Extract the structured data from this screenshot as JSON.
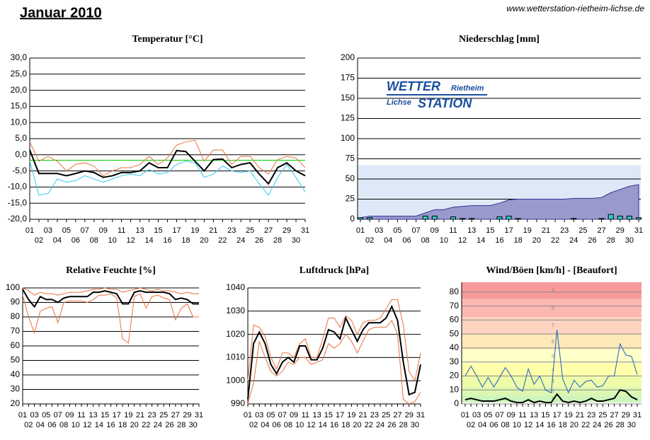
{
  "header": {
    "title": "Januar 2010",
    "url": "www.wetterstation-rietheim-lichse.de"
  },
  "logo": {
    "word1": "WETTER",
    "place1": "Rietheim",
    "place2": "Lichse",
    "word2": "STATION"
  },
  "chart_data": [
    {
      "type": "line",
      "title": "Temperatur [°C]",
      "categories": [
        "01",
        "02",
        "03",
        "04",
        "05",
        "06",
        "07",
        "08",
        "09",
        "10",
        "11",
        "12",
        "13",
        "14",
        "15",
        "16",
        "17",
        "18",
        "19",
        "20",
        "21",
        "22",
        "23",
        "24",
        "25",
        "26",
        "27",
        "28",
        "29",
        "30",
        "31"
      ],
      "ylim": [
        -20,
        30
      ],
      "yticks": [
        {
          "value": -20,
          "label": "-20,0"
        },
        {
          "value": -15,
          "label": "-15,0"
        },
        {
          "value": -10,
          "label": "-10,0"
        },
        {
          "value": -5,
          "label": "-5,0"
        },
        {
          "value": 0,
          "label": "0,0"
        },
        {
          "value": 5,
          "label": "5,0"
        },
        {
          "value": 10,
          "label": "10,0"
        },
        {
          "value": 15,
          "label": "15,0"
        },
        {
          "value": 20,
          "label": "20,0"
        },
        {
          "value": 25,
          "label": "25,0"
        },
        {
          "value": 30,
          "label": "30,0"
        }
      ],
      "series": [
        {
          "color": "#00cc00",
          "values": [
            -1.7,
            -1.7,
            -1.7,
            -1.7,
            -1.7,
            -1.7,
            -1.7,
            -1.7,
            -1.7,
            -1.7,
            -1.7,
            -1.7,
            -1.7,
            -1.7,
            -1.7,
            -1.7,
            -1.7,
            -1.7,
            -1.7,
            -1.7,
            -1.7,
            -1.7,
            -1.7,
            -1.7,
            -1.7,
            -1.7,
            -1.7,
            -1.7,
            -1.7,
            -1.7,
            -1.7
          ]
        },
        {
          "color": "#e8703a",
          "values": [
            4,
            -2,
            -0.5,
            -2,
            -5,
            -3,
            -2.5,
            -3.5,
            -6.5,
            -5,
            -4,
            -4,
            -3,
            -0.5,
            -3,
            -1,
            3,
            4,
            4.5,
            -2,
            1.5,
            1.5,
            -3,
            -0.5,
            -0.5,
            -4,
            -6,
            -1.5,
            -0.5,
            -1,
            -4
          ]
        },
        {
          "color": "#33ccee",
          "values": [
            -2,
            -12.5,
            -12,
            -7.5,
            -8.5,
            -8,
            -6.5,
            -7.5,
            -8.5,
            -7.5,
            -6.5,
            -6,
            -6.5,
            -4.5,
            -6,
            -5.5,
            -3,
            -2,
            -2.5,
            -7,
            -6,
            -3.5,
            -5,
            -5.5,
            -5,
            -9,
            -12.5,
            -7,
            -3,
            -7,
            -11.5
          ]
        },
        {
          "color": "#000000",
          "width": 2,
          "values": [
            1.5,
            -5.8,
            -5.8,
            -5.8,
            -6.5,
            -5.8,
            -5,
            -5.5,
            -7,
            -6.5,
            -5.5,
            -5.5,
            -5,
            -2.5,
            -4,
            -4,
            1.3,
            1,
            -2,
            -5,
            -1.5,
            -1.3,
            -4,
            -3,
            -2.5,
            -6,
            -9,
            -4,
            -2.5,
            -5,
            -6.5
          ]
        }
      ]
    },
    {
      "type": "bar",
      "title": "Niederschlag [mm]",
      "categories": [
        "01",
        "02",
        "03",
        "04",
        "05",
        "06",
        "07",
        "08",
        "09",
        "10",
        "11",
        "12",
        "13",
        "14",
        "15",
        "16",
        "17",
        "18",
        "19",
        "20",
        "21",
        "22",
        "23",
        "24",
        "25",
        "26",
        "27",
        "28",
        "29",
        "30",
        "31"
      ],
      "ylim": [
        0,
        200
      ],
      "yticks": [
        0,
        25,
        50,
        75,
        100,
        125,
        150,
        175,
        200
      ],
      "normal_band": 67,
      "series": [
        {
          "type": "area",
          "color": "#9999cc",
          "values": [
            2,
            4,
            4,
            4,
            4,
            4,
            4,
            8,
            12,
            12,
            15,
            16,
            17,
            17,
            17,
            20,
            24,
            25,
            25,
            25,
            25,
            25,
            25,
            26,
            26,
            26,
            27,
            33,
            37,
            41,
            43
          ]
        },
        {
          "type": "bar",
          "color": "#33cccc",
          "values": [
            2,
            2,
            0,
            0,
            0,
            0,
            0,
            4,
            4,
            0,
            3,
            1,
            1,
            0,
            0,
            3,
            4,
            1,
            0,
            0,
            0,
            0,
            0,
            1,
            0,
            0,
            1,
            6,
            4,
            4,
            2
          ]
        }
      ]
    },
    {
      "type": "line",
      "title": "Relative Feuchte [%]",
      "categories": [
        "01",
        "02",
        "03",
        "04",
        "05",
        "06",
        "07",
        "08",
        "09",
        "10",
        "11",
        "12",
        "13",
        "14",
        "15",
        "16",
        "17",
        "18",
        "19",
        "20",
        "21",
        "22",
        "23",
        "24",
        "25",
        "26",
        "27",
        "28",
        "29",
        "30",
        "31"
      ],
      "ylim": [
        20,
        100
      ],
      "yticks": [
        20,
        30,
        40,
        50,
        60,
        70,
        80,
        90,
        100
      ],
      "series": [
        {
          "color": "#e8703a",
          "values": [
            100,
            98,
            95,
            97,
            96,
            96,
            95,
            96,
            97,
            97,
            97,
            98,
            99,
            99,
            100,
            99,
            99,
            97,
            98,
            99,
            100,
            99,
            98,
            99,
            98,
            98,
            97,
            96,
            97,
            96,
            96
          ]
        },
        {
          "color": "#e8703a",
          "values": [
            95,
            80,
            69,
            84,
            86,
            87,
            76,
            90,
            91,
            91,
            91,
            90,
            92,
            95,
            95,
            96,
            93,
            65,
            62,
            94,
            96,
            86,
            94,
            95,
            93,
            92,
            78,
            86,
            89,
            80,
            80
          ]
        },
        {
          "color": "#000000",
          "width": 2,
          "values": [
            99,
            92,
            87,
            94,
            92,
            92,
            90,
            93,
            94,
            94,
            94,
            94,
            97,
            97,
            98,
            97,
            96,
            89,
            89,
            97,
            98,
            97,
            97,
            97,
            97,
            96,
            92,
            93,
            92,
            89,
            89
          ]
        }
      ]
    },
    {
      "type": "line",
      "title": "Luftdruck [hPa]",
      "categories": [
        "01",
        "02",
        "03",
        "04",
        "05",
        "06",
        "07",
        "08",
        "09",
        "10",
        "11",
        "12",
        "13",
        "14",
        "15",
        "16",
        "17",
        "18",
        "19",
        "20",
        "21",
        "22",
        "23",
        "24",
        "25",
        "26",
        "27",
        "28",
        "29",
        "30",
        "31"
      ],
      "ylim": [
        990,
        1040
      ],
      "yticks": [
        990,
        1000,
        1010,
        1020,
        1030,
        1040
      ],
      "series": [
        {
          "color": "#e8703a",
          "values": [
            1000,
            1024,
            1023,
            1019,
            1010,
            1005,
            1012,
            1012,
            1010,
            1016,
            1018,
            1010,
            1010,
            1018,
            1027,
            1027,
            1023,
            1028,
            1026,
            1020,
            1025,
            1026,
            1026,
            1027,
            1031,
            1035,
            1035,
            1024,
            1004,
            1000,
            1012
          ]
        },
        {
          "color": "#e8703a",
          "values": [
            990,
            999,
            1017,
            1010,
            1004,
            1002,
            1004,
            1008,
            1007,
            1010,
            1010,
            1007,
            1008,
            1009,
            1016,
            1014,
            1016,
            1020,
            1017,
            1012,
            1017,
            1022,
            1023,
            1023,
            1023,
            1026,
            1020,
            992,
            990,
            991,
            995
          ]
        },
        {
          "color": "#000000",
          "width": 2,
          "values": [
            992,
            1016,
            1021,
            1016,
            1007,
            1003,
            1008,
            1010,
            1008,
            1015,
            1015,
            1009,
            1009,
            1014,
            1022,
            1021,
            1018,
            1027,
            1022,
            1017,
            1022,
            1025,
            1025,
            1025,
            1027,
            1032,
            1026,
            1008,
            994,
            995,
            1007
          ]
        }
      ]
    },
    {
      "type": "line",
      "title": "Wind/Böen [km/h] - [Beaufort]",
      "categories": [
        "01",
        "02",
        "03",
        "04",
        "05",
        "06",
        "07",
        "08",
        "09",
        "10",
        "11",
        "12",
        "13",
        "14",
        "15",
        "16",
        "17",
        "18",
        "19",
        "20",
        "21",
        "22",
        "23",
        "24",
        "25",
        "26",
        "27",
        "28",
        "29",
        "30",
        "31"
      ],
      "ylim": [
        0,
        87
      ],
      "yticks": [
        0,
        10,
        20,
        30,
        40,
        50,
        60,
        70,
        80
      ],
      "beaufort_bands": [
        {
          "level": 1,
          "lower": 1,
          "upper": 6,
          "color": "#ccf5bb"
        },
        {
          "level": 2,
          "lower": 6,
          "upper": 12,
          "color": "#ddf7b0"
        },
        {
          "level": 3,
          "lower": 12,
          "upper": 20,
          "color": "#eefcaa"
        },
        {
          "level": 4,
          "lower": 20,
          "upper": 29,
          "color": "#ffffaa"
        },
        {
          "level": 5,
          "lower": 29,
          "upper": 39,
          "color": "#ffffc8"
        },
        {
          "level": 6,
          "lower": 39,
          "upper": 50,
          "color": "#fde8b8"
        },
        {
          "level": 7,
          "lower": 50,
          "upper": 62,
          "color": "#fcd4c0"
        },
        {
          "level": 8,
          "lower": 62,
          "upper": 75,
          "color": "#fbb8b0"
        },
        {
          "level": 9,
          "lower": 75,
          "upper": 87,
          "color": "#f99a9a"
        }
      ],
      "series": [
        {
          "color": "#1f5fbf",
          "values": [
            20,
            27,
            20,
            12,
            19,
            12,
            19,
            26,
            20,
            12,
            9,
            25,
            14,
            20,
            10,
            8,
            53,
            18,
            8,
            17,
            12,
            16,
            17,
            12,
            13,
            20,
            20,
            43,
            35,
            34,
            21
          ]
        },
        {
          "color": "#000000",
          "width": 2,
          "values": [
            3,
            4,
            3,
            2,
            2,
            2,
            3,
            4,
            2,
            1,
            1,
            3,
            1,
            2,
            1,
            1,
            7,
            2,
            1,
            2,
            1,
            2,
            4,
            2,
            2,
            3,
            4,
            10,
            9,
            5,
            3
          ]
        }
      ]
    }
  ]
}
